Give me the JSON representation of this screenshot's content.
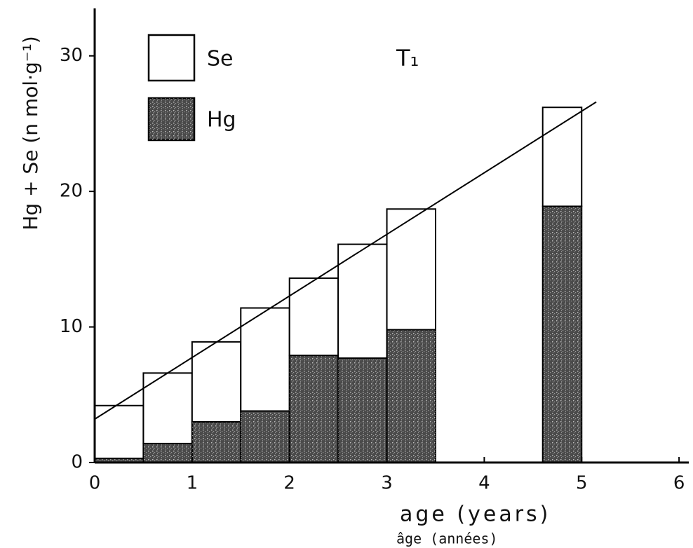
{
  "chart_data": {
    "type": "stacked_histogram",
    "ylabel": "Hg + Se (n mol·g⁻¹)",
    "xlabel": "age (years)",
    "xlabel_fr": "âge (années)",
    "annotation": "T₁",
    "bins": [
      0,
      0.5,
      1,
      1.5,
      2,
      2.5,
      3,
      3.5,
      4.6,
      5
    ],
    "series": [
      {
        "name": "Hg",
        "color": "#4a4a4a",
        "values": [
          0.3,
          1.4,
          3.0,
          3.8,
          7.9,
          7.7,
          9.8,
          null,
          18.9
        ]
      },
      {
        "name": "Se",
        "color": "#ffffff",
        "values": [
          3.9,
          5.2,
          5.9,
          7.6,
          5.7,
          8.4,
          8.9,
          null,
          7.3
        ]
      }
    ],
    "trend_line": {
      "x": [
        0,
        5.15
      ],
      "y": [
        3.2,
        26.6
      ],
      "color": "#000000"
    },
    "xlim": [
      0,
      6.1
    ],
    "ylim": [
      0,
      33.5
    ],
    "xticks": [
      0,
      1,
      2,
      3,
      4,
      5,
      6
    ],
    "yticks": [
      0,
      10,
      20,
      30
    ],
    "grid": false
  }
}
